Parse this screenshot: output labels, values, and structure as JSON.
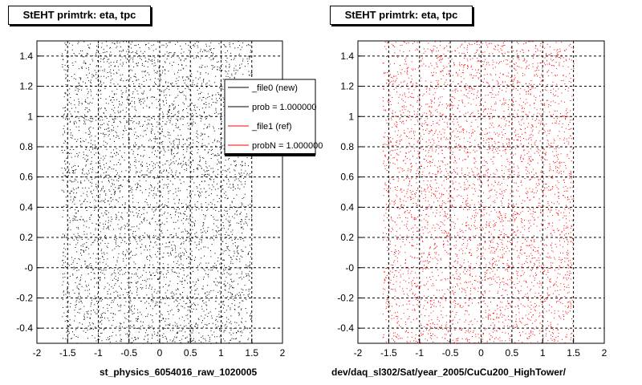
{
  "panels": [
    {
      "title": "StEHT primtrk: eta, tpc",
      "xlabel": "st_physics_6054016_raw_1020005",
      "color": "#000000"
    },
    {
      "title": "StEHT primtrk: eta, tpc",
      "xlabel": "dev/daq_sl302/Sat/year_2005/CuCu200_HighTower/",
      "color": "#ff0000"
    }
  ],
  "legend": {
    "entries": [
      {
        "label": "_file0 (new)",
        "color": "#000000"
      },
      {
        "label": "prob = 1.000000",
        "color": "#000000"
      },
      {
        "label": "_file1 (ref)",
        "color": "#ff0000"
      },
      {
        "label": "probN = 1.000000",
        "color": "#ff0000"
      }
    ]
  },
  "chart_data": [
    {
      "type": "scatter",
      "title": "StEHT primtrk: eta, tpc",
      "xlabel": "st_physics_6054016_raw_1020005",
      "ylabel": "",
      "xlim": [
        -2,
        2
      ],
      "ylim": [
        -0.5,
        1.5
      ],
      "x_ticks": [
        "-2",
        "-1.5",
        "-1",
        "-0.5",
        "0",
        "0.5",
        "1",
        "1.5",
        "2"
      ],
      "y_ticks": [
        "-0.4",
        "-0.2",
        "-0",
        "0.2",
        "0.4",
        "0.6",
        "0.8",
        "1",
        "1.2",
        "1.4"
      ],
      "grid": true,
      "series": [
        {
          "name": "_file0 (new)",
          "color": "#000000",
          "x_range": [
            -1.6,
            1.5
          ],
          "y_range": [
            -0.5,
            1.5
          ]
        }
      ]
    },
    {
      "type": "scatter",
      "title": "StEHT primtrk: eta, tpc",
      "xlabel": "dev/daq_sl302/Sat/year_2005/CuCu200_HighTower/",
      "ylabel": "",
      "xlim": [
        -2,
        2
      ],
      "ylim": [
        -0.5,
        1.5
      ],
      "x_ticks": [
        "-2",
        "-1.5",
        "-1",
        "-0.5",
        "0",
        "0.5",
        "1",
        "1.5",
        "2"
      ],
      "y_ticks": [
        "-0.4",
        "-0.2",
        "-0",
        "0.2",
        "0.4",
        "0.6",
        "0.8",
        "1",
        "1.2",
        "1.4"
      ],
      "grid": true,
      "series": [
        {
          "name": "_file1 (ref)",
          "color": "#ff0000",
          "x_range": [
            -1.6,
            1.5
          ],
          "y_range": [
            -0.5,
            1.5
          ]
        }
      ]
    }
  ]
}
